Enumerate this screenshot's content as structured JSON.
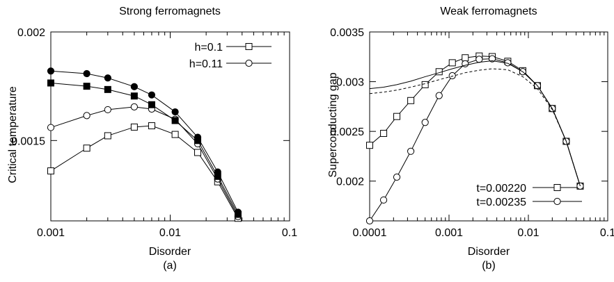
{
  "chart_data": [
    {
      "type": "line",
      "title": "Strong ferromagnets",
      "xlabel": "Disorder",
      "ylabel": "Critical temperature",
      "caption": "(a)",
      "xscale": "log",
      "xlim": [
        0.001,
        0.1
      ],
      "ylim": [
        0.00113,
        0.002
      ],
      "xticks": [
        0.001,
        0.01,
        0.1
      ],
      "xtick_labels": [
        "0.001",
        "0.01",
        "0.1"
      ],
      "yticks": [
        0.0015,
        0.002
      ],
      "ytick_labels": [
        "0.0015",
        "0.002"
      ],
      "grid": false,
      "legend_position": "top-right",
      "series": [
        {
          "name": "h=0.1",
          "marker": "open-square",
          "line": true,
          "x": [
            0.001,
            0.002,
            0.003,
            0.005,
            0.007,
            0.011,
            0.017,
            0.025,
            0.037
          ],
          "y": [
            0.00136,
            0.001465,
            0.001522,
            0.001562,
            0.001568,
            0.001528,
            0.001445,
            0.00131,
            0.001142
          ]
        },
        {
          "name": "h=0.11",
          "marker": "open-circle",
          "line": true,
          "x": [
            0.001,
            0.002,
            0.003,
            0.005,
            0.007,
            0.011,
            0.017,
            0.025,
            0.037
          ],
          "y": [
            0.00156,
            0.001615,
            0.001642,
            0.001655,
            0.001645,
            0.001598,
            0.001485,
            0.001323,
            0.00115
          ]
        },
        {
          "name": "",
          "marker": "filled-square",
          "line": true,
          "x": [
            0.001,
            0.002,
            0.003,
            0.005,
            0.007,
            0.011,
            0.017,
            0.025,
            0.037
          ],
          "y": [
            0.001765,
            0.00175,
            0.001735,
            0.001705,
            0.001665,
            0.001592,
            0.0015,
            0.001335,
            0.00116
          ]
        },
        {
          "name": "",
          "marker": "filled-circle",
          "line": true,
          "x": [
            0.001,
            0.002,
            0.003,
            0.005,
            0.007,
            0.011,
            0.017,
            0.025,
            0.037
          ],
          "y": [
            0.00182,
            0.001808,
            0.001788,
            0.001748,
            0.00171,
            0.001632,
            0.001515,
            0.001355,
            0.00117
          ]
        }
      ]
    },
    {
      "type": "line",
      "title": "Weak ferromagnets",
      "xlabel": "Disorder",
      "ylabel": "Superconducting gap",
      "caption": "(b)",
      "xscale": "log",
      "xlim": [
        0.0001,
        0.1
      ],
      "ylim": [
        0.0016,
        0.0035
      ],
      "xticks": [
        0.0001,
        0.001,
        0.01,
        0.1
      ],
      "xtick_labels": [
        "0.0001",
        "0.001",
        "0.01",
        "0.1"
      ],
      "yticks": [
        0.002,
        0.0025,
        0.003,
        0.0035
      ],
      "ytick_labels": [
        "0.002",
        "0.0025",
        "0.003",
        "0.0035"
      ],
      "grid": false,
      "legend_position": "bottom-right",
      "series": [
        {
          "name": "t=0.00220",
          "marker": "open-square",
          "line": true,
          "x": [
            0.0001,
            0.00015,
            0.00022,
            0.00033,
            0.0005,
            0.00075,
            0.0011,
            0.0016,
            0.0024,
            0.0035,
            0.0055,
            0.0085,
            0.013,
            0.02,
            0.03,
            0.045
          ],
          "y": [
            0.00236,
            0.00248,
            0.00265,
            0.00281,
            0.00297,
            0.0031,
            0.00319,
            0.00324,
            0.003258,
            0.003252,
            0.003205,
            0.00311,
            0.00296,
            0.00273,
            0.0024,
            0.00195
          ]
        },
        {
          "name": "t=0.00235",
          "marker": "open-circle",
          "line": true,
          "x": [
            0.0001,
            0.00015,
            0.00022,
            0.00033,
            0.0005,
            0.00075,
            0.0011,
            0.0016,
            0.0024,
            0.0035,
            0.0055,
            0.0085,
            0.013,
            0.02,
            0.03,
            0.045
          ],
          "y": [
            0.0016,
            0.00181,
            0.00204,
            0.0023,
            0.00259,
            0.00286,
            0.00306,
            0.00318,
            0.003225,
            0.00323,
            0.00319,
            0.0031,
            0.00296,
            0.00273,
            0.0024,
            0.00195
          ]
        },
        {
          "name": "",
          "marker": "none",
          "line": "solid",
          "x": [
            0.0001,
            0.00015,
            0.00022,
            0.00033,
            0.0005,
            0.00075,
            0.0011,
            0.0016,
            0.0024,
            0.0035,
            0.0055,
            0.0085,
            0.013,
            0.02,
            0.03,
            0.045
          ],
          "y": [
            0.00293,
            0.002945,
            0.00297,
            0.003005,
            0.00305,
            0.00309,
            0.00313,
            0.003165,
            0.003195,
            0.00321,
            0.003185,
            0.0031,
            0.00296,
            0.00273,
            0.0024,
            0.00195
          ]
        },
        {
          "name": "",
          "marker": "none",
          "line": "dashed",
          "x": [
            0.0001,
            0.00015,
            0.00022,
            0.00033,
            0.0005,
            0.00075,
            0.0011,
            0.0016,
            0.0024,
            0.0035,
            0.0055,
            0.0085,
            0.013,
            0.02,
            0.03,
            0.045
          ],
          "y": [
            0.00288,
            0.002895,
            0.002915,
            0.002945,
            0.00298,
            0.00302,
            0.003055,
            0.00309,
            0.003115,
            0.00313,
            0.00312,
            0.00305,
            0.00293,
            0.00272,
            0.0024,
            0.00195
          ]
        }
      ]
    }
  ]
}
